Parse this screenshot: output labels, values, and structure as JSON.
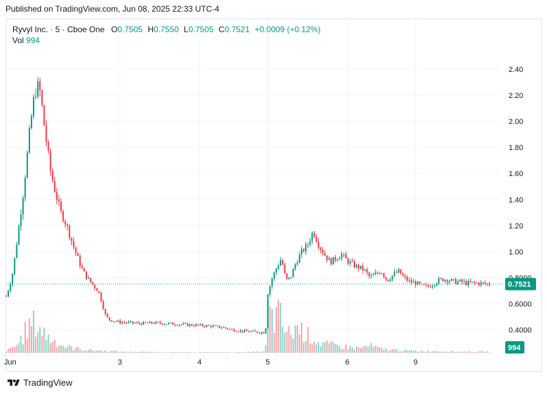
{
  "header": {
    "published": "Published on TradingView.com, Jun 08, 2025 22:33 UTC-4"
  },
  "legend": {
    "symbol": "Ryvyl Inc. · 5 · Cboe One",
    "o_label": "O",
    "o_value": "0.7505",
    "h_label": "H",
    "h_value": "0.7550",
    "l_label": "L",
    "l_value": "0.7505",
    "c_label": "C",
    "c_value": "0.7521",
    "change": "+0.0009 (+0.12%)",
    "vol_label": "Vol",
    "vol_value": "994"
  },
  "footer": {
    "brand": "TradingView"
  },
  "colors": {
    "up": "#089981",
    "down": "#f23645",
    "grid": "#f0f3fa",
    "axis_text": "#131722",
    "price_line": "#089981"
  },
  "chart_data": {
    "type": "candlestick",
    "title": "",
    "xlabel": "",
    "ylabel": "",
    "x_ticks": [
      "Jun",
      "3",
      "4",
      "5",
      "6",
      "9"
    ],
    "y_ticks": [
      "2.40",
      "2.20",
      "2.00",
      "1.80",
      "1.60",
      "1.40",
      "1.20",
      "1.00",
      "0.8000",
      "0.6000",
      "0.4000"
    ],
    "y_range": [
      0.33,
      2.52
    ],
    "last_price": 0.7521,
    "last_price_label": "0.7521",
    "last_volume_label": "994",
    "legend_position": "top-left",
    "grid": true,
    "price_path": [
      [
        0.0,
        0.66
      ],
      [
        0.03,
        0.74
      ],
      [
        0.06,
        0.85
      ],
      [
        0.09,
        1.05
      ],
      [
        0.12,
        1.25
      ],
      [
        0.15,
        1.45
      ],
      [
        0.18,
        1.7
      ],
      [
        0.21,
        1.95
      ],
      [
        0.24,
        2.15
      ],
      [
        0.27,
        2.28
      ],
      [
        0.3,
        2.22
      ],
      [
        0.33,
        2.0
      ],
      [
        0.36,
        1.8
      ],
      [
        0.39,
        1.62
      ],
      [
        0.42,
        1.5
      ],
      [
        0.45,
        1.4
      ],
      [
        0.48,
        1.3
      ],
      [
        0.51,
        1.25
      ],
      [
        0.54,
        1.18
      ],
      [
        0.57,
        1.1
      ],
      [
        0.6,
        1.02
      ],
      [
        0.63,
        0.95
      ],
      [
        0.66,
        0.88
      ],
      [
        0.69,
        0.83
      ],
      [
        0.72,
        0.79
      ],
      [
        0.75,
        0.76
      ],
      [
        0.78,
        0.73
      ],
      [
        0.81,
        0.7
      ],
      [
        0.84,
        0.62
      ],
      [
        0.87,
        0.52
      ],
      [
        0.9,
        0.48
      ],
      [
        0.95,
        0.47
      ],
      [
        1.0,
        0.46
      ],
      [
        1.1,
        0.455
      ],
      [
        1.2,
        0.45
      ],
      [
        1.3,
        0.455
      ],
      [
        1.4,
        0.45
      ],
      [
        1.5,
        0.445
      ],
      [
        1.6,
        0.44
      ],
      [
        1.7,
        0.435
      ],
      [
        1.8,
        0.43
      ],
      [
        1.9,
        0.42
      ],
      [
        2.0,
        0.4
      ],
      [
        2.1,
        0.39
      ],
      [
        2.2,
        0.385
      ],
      [
        2.28,
        0.38
      ],
      [
        2.3,
        0.68
      ],
      [
        2.34,
        0.8
      ],
      [
        2.38,
        0.88
      ],
      [
        2.42,
        0.95
      ],
      [
        2.46,
        0.78
      ],
      [
        2.5,
        0.8
      ],
      [
        2.55,
        0.92
      ],
      [
        2.6,
        1.0
      ],
      [
        2.65,
        1.05
      ],
      [
        2.7,
        1.16
      ],
      [
        2.75,
        1.05
      ],
      [
        2.8,
        0.98
      ],
      [
        2.85,
        0.92
      ],
      [
        2.9,
        0.95
      ],
      [
        2.95,
        0.98
      ],
      [
        3.0,
        0.93
      ],
      [
        3.05,
        0.9
      ],
      [
        3.1,
        0.88
      ],
      [
        3.15,
        0.86
      ],
      [
        3.2,
        0.8
      ],
      [
        3.25,
        0.83
      ],
      [
        3.3,
        0.85
      ],
      [
        3.35,
        0.78
      ],
      [
        3.4,
        0.82
      ],
      [
        3.45,
        0.85
      ],
      [
        3.5,
        0.8
      ],
      [
        3.55,
        0.77
      ],
      [
        3.6,
        0.76
      ],
      [
        3.65,
        0.74
      ],
      [
        3.7,
        0.73
      ],
      [
        3.75,
        0.75
      ],
      [
        3.8,
        0.78
      ],
      [
        3.85,
        0.79
      ],
      [
        3.9,
        0.78
      ],
      [
        3.95,
        0.77
      ],
      [
        4.0,
        0.77
      ],
      [
        4.05,
        0.76
      ],
      [
        4.1,
        0.76
      ],
      [
        4.15,
        0.76
      ],
      [
        4.2,
        0.755
      ],
      [
        4.25,
        0.752
      ]
    ],
    "volume_profile": [
      [
        0.0,
        3
      ],
      [
        0.05,
        8
      ],
      [
        0.1,
        14
      ],
      [
        0.15,
        30
      ],
      [
        0.2,
        45
      ],
      [
        0.25,
        50
      ],
      [
        0.3,
        42
      ],
      [
        0.35,
        30
      ],
      [
        0.4,
        22
      ],
      [
        0.45,
        18
      ],
      [
        0.5,
        12
      ],
      [
        0.55,
        10
      ],
      [
        0.6,
        8
      ],
      [
        0.7,
        5
      ],
      [
        0.8,
        4
      ],
      [
        0.9,
        3
      ],
      [
        1.0,
        2
      ],
      [
        1.5,
        1
      ],
      [
        2.0,
        1
      ],
      [
        2.28,
        2
      ],
      [
        2.3,
        70
      ],
      [
        2.35,
        55
      ],
      [
        2.4,
        65
      ],
      [
        2.45,
        40
      ],
      [
        2.5,
        30
      ],
      [
        2.55,
        45
      ],
      [
        2.6,
        38
      ],
      [
        2.65,
        30
      ],
      [
        2.7,
        25
      ],
      [
        2.75,
        18
      ],
      [
        2.8,
        15
      ],
      [
        2.9,
        12
      ],
      [
        3.0,
        10
      ],
      [
        3.1,
        8
      ],
      [
        3.2,
        12
      ],
      [
        3.3,
        6
      ],
      [
        3.4,
        5
      ],
      [
        3.5,
        4
      ],
      [
        3.6,
        3
      ],
      [
        3.8,
        3
      ],
      [
        4.0,
        2
      ],
      [
        4.25,
        2
      ]
    ]
  }
}
